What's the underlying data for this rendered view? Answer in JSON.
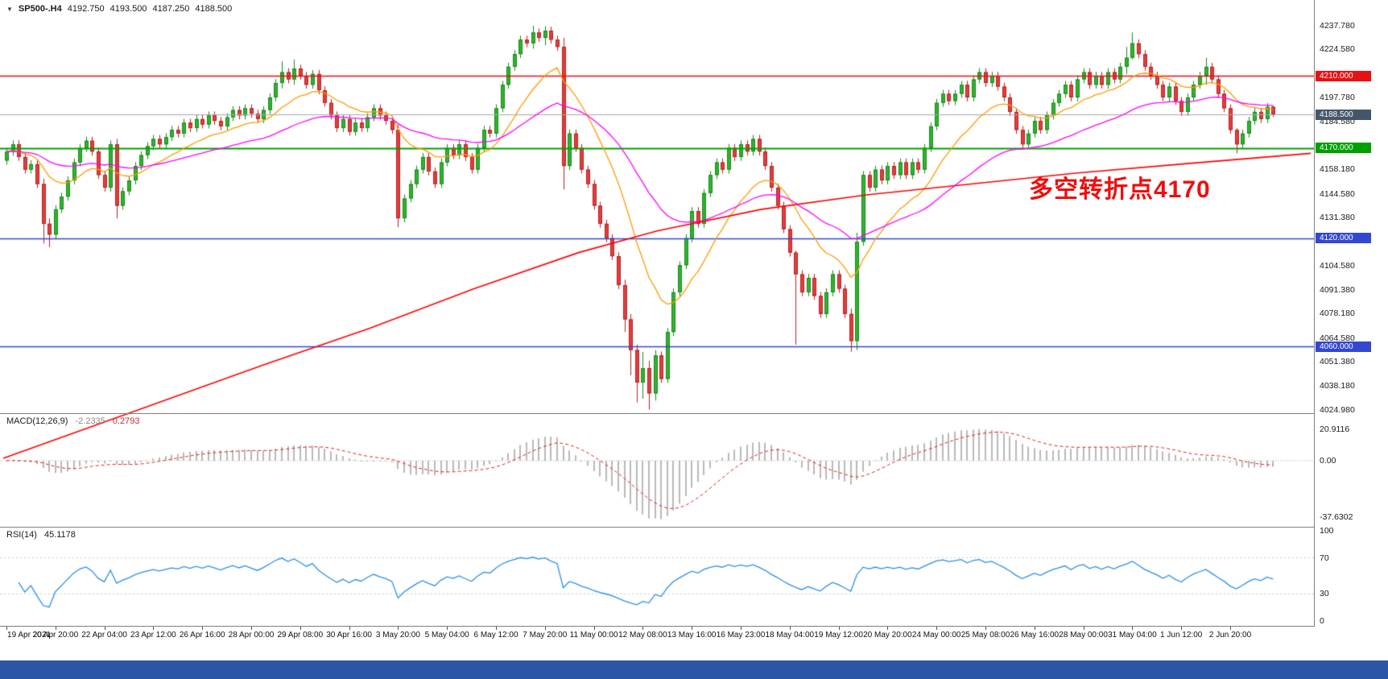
{
  "window": {
    "dropdown_icon": "▼",
    "symbol_header": "SP500-.H4",
    "ohlc": {
      "open": "4192.750",
      "high": "4193.500",
      "low": "4187.250",
      "close": "4188.500"
    }
  },
  "annotation": {
    "text": "多空转折点4170",
    "color": "#f00d0d"
  },
  "indicators": {
    "macd": {
      "label": "MACD(12,26,9)",
      "value_main": "-2.2335",
      "value_signal": "0.2793",
      "axis_max": "20.9116",
      "axis_zero": "0.00",
      "axis_min": "-37.6302"
    },
    "rsi": {
      "label": "RSI(14)",
      "value": "45.1178",
      "axis": [
        "100",
        "70",
        "30",
        "0"
      ],
      "levels": [
        70,
        30
      ]
    }
  },
  "colors": {
    "bottom_bar": "#2d55a5",
    "separator": "#808080"
  },
  "chart_data": {
    "type": "candlestick",
    "title": "SP500-.H4",
    "price_range": [
      4024.98,
      4237.78
    ],
    "y_ticks": [
      "4237.780",
      "4224.580",
      "4197.780",
      "4184.580",
      "4158.180",
      "4144.580",
      "4131.380",
      "4104.580",
      "4091.380",
      "4078.180",
      "4064.580",
      "4051.380",
      "4038.180",
      "4024.980"
    ],
    "horizontal_lines": [
      {
        "value": 4210.0,
        "label": "4210.000",
        "bg": "#e81010",
        "line_color": "#e81010",
        "line_width": 1.5
      },
      {
        "value": 4188.5,
        "label": "4188.500",
        "bg": "#44566a",
        "line_color": "#a9a9a9",
        "line_width": 1
      },
      {
        "value": 4170.0,
        "label": "4170.000",
        "bg": "#00a000",
        "line_color": "#00a000",
        "line_width": 2
      },
      {
        "value": 4120.0,
        "label": "4120.000",
        "bg": "#3347d1",
        "line_color": "#3347d1",
        "line_width": 1.5
      },
      {
        "value": 4060.0,
        "label": "4060.000",
        "bg": "#3347d1",
        "line_color": "#3347d1",
        "line_width": 1.5
      }
    ],
    "x_labels": [
      "19 Apr 2021",
      "20 Apr 20:00",
      "22 Apr 04:00",
      "23 Apr 12:00",
      "26 Apr 16:00",
      "28 Apr 00:00",
      "29 Apr 08:00",
      "30 Apr 16:00",
      "3 May 20:00",
      "5 May 04:00",
      "6 May 12:00",
      "7 May 20:00",
      "11 May 00:00",
      "12 May 08:00",
      "13 May 16:00",
      "16 May 23:00",
      "18 May 04:00",
      "19 May 12:00",
      "20 May 20:00",
      "24 May 00:00",
      "25 May 08:00",
      "26 May 16:00",
      "28 May 00:00",
      "31 May 04:00",
      "1 Jun 12:00",
      "2 Jun 20:00"
    ],
    "candles": {
      "first_open": 4163,
      "default_wick": 2.2,
      "closes": [
        4168,
        4172,
        4165,
        4158,
        4161,
        4150,
        4128,
        4122,
        4136,
        4143,
        4152,
        4162,
        4170,
        4174,
        4168,
        4155,
        4148,
        4172,
        4138,
        4146,
        4152,
        4160,
        4166,
        4171,
        4175,
        4172,
        4176,
        4180,
        4178,
        4184,
        4181,
        4186,
        4183,
        4188,
        4185,
        4182,
        4187,
        4191,
        4188,
        4192,
        4189,
        4186,
        4191,
        4198,
        4206,
        4212,
        4208,
        4214,
        4210,
        4205,
        4211,
        4202,
        4195,
        4188,
        4181,
        4186,
        4179,
        4184,
        4181,
        4187,
        4192,
        4188,
        4185,
        4180,
        4131,
        4142,
        4150,
        4158,
        4165,
        4157,
        4150,
        4162,
        4170,
        4166,
        4172,
        4165,
        4158,
        4170,
        4180,
        4178,
        4192,
        4205,
        4215,
        4222,
        4230,
        4228,
        4234,
        4231,
        4235,
        4230,
        4226,
        4160,
        4178,
        4170,
        4158,
        4150,
        4138,
        4128,
        4120,
        4110,
        4094,
        4075,
        4058,
        4040,
        4048,
        4034,
        4055,
        4042,
        4068,
        4090,
        4105,
        4120,
        4135,
        4128,
        4145,
        4155,
        4162,
        4158,
        4170,
        4165,
        4172,
        4168,
        4175,
        4168,
        4160,
        4148,
        4138,
        4125,
        4112,
        4100,
        4090,
        4098,
        4088,
        4078,
        4090,
        4100,
        4092,
        4078,
        4063,
        4118,
        4155,
        4148,
        4158,
        4152,
        4160,
        4155,
        4162,
        4155,
        4162,
        4158,
        4170,
        4182,
        4195,
        4200,
        4196,
        4200,
        4205,
        4198,
        4208,
        4212,
        4206,
        4210,
        4204,
        4198,
        4190,
        4180,
        4172,
        4178,
        4185,
        4180,
        4188,
        4195,
        4200,
        4205,
        4198,
        4208,
        4212,
        4205,
        4210,
        4205,
        4212,
        4208,
        4215,
        4220,
        4228,
        4222,
        4215,
        4210,
        4205,
        4198,
        4204,
        4196,
        4190,
        4198,
        4205,
        4210,
        4215,
        4208,
        4200,
        4192,
        4180,
        4172,
        4178,
        4185,
        4190,
        4186,
        4192.75,
        4188.5
      ],
      "wick_overrides": {
        "6": [
          4153,
          4117
        ],
        "7": [
          4131,
          4115
        ],
        "18": [
          4175,
          4131
        ],
        "45": [
          4218,
          4203
        ],
        "47": [
          4219,
          4205
        ],
        "64": [
          4183,
          4126
        ],
        "86": [
          4237.8,
          4225
        ],
        "88": [
          4237.5,
          4227
        ],
        "91": [
          4231,
          4147
        ],
        "101": [
          4097,
          4068
        ],
        "102": [
          4078,
          4044
        ],
        "103": [
          4061,
          4029
        ],
        "104": [
          4057,
          4031
        ],
        "105": [
          4052,
          4025
        ],
        "106": [
          4058,
          4030
        ],
        "129": [
          4113,
          4061
        ],
        "138": [
          4081,
          4057
        ],
        "139": [
          4123,
          4058
        ],
        "183": [
          4226,
          4211
        ],
        "184": [
          4234,
          4219
        ],
        "196": [
          4220,
          4205
        ],
        "201": [
          4181,
          4167
        ],
        "207": [
          4193.5,
          4187.25
        ]
      }
    },
    "moving_averages": {
      "fast": {
        "period": 14,
        "color": "#ff9a00"
      },
      "mid": {
        "period": 40,
        "color": "#ff00ff"
      },
      "slow_color": "#ff0000",
      "slow_points": [
        [
          0,
          3998
        ],
        [
          0.1,
          4024
        ],
        [
          0.2,
          4050
        ],
        [
          0.28,
          4070
        ],
        [
          0.36,
          4092
        ],
        [
          0.44,
          4112
        ],
        [
          0.5,
          4124
        ],
        [
          0.58,
          4136
        ],
        [
          0.66,
          4144
        ],
        [
          0.74,
          4150
        ],
        [
          0.82,
          4156
        ],
        [
          0.9,
          4161
        ],
        [
          1,
          4167
        ]
      ]
    },
    "macd_params": {
      "fast": 12,
      "slow": 26,
      "signal": 9
    },
    "rsi_period": 14,
    "style": {
      "up": "#2eb52e",
      "up_border": "#1c871c",
      "down": "#e43d3d",
      "down_border": "#b42222",
      "macd_hist": "#b9b9b9",
      "macd_signal": "#dd2222",
      "rsi_line": "#2a8fe8",
      "rsi_levels": "#c8c8c8"
    }
  }
}
